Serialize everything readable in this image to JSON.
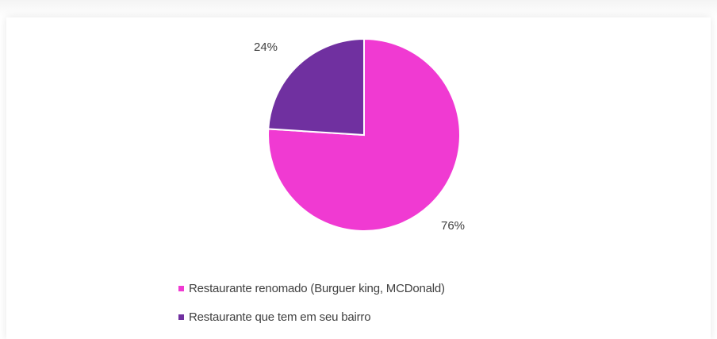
{
  "chart_data": {
    "type": "pie",
    "title": "",
    "slices": [
      {
        "label": "Restaurante renomado (Burguer king, MCDonald)",
        "value": 76,
        "value_label": "76%",
        "color": "#f03ad2"
      },
      {
        "label": "Restaurante que tem em seu bairro",
        "value": 24,
        "value_label": "24%",
        "color": "#7030a0"
      }
    ],
    "legend_position": "bottom",
    "start_angle": "12 o'clock, clockwise"
  }
}
